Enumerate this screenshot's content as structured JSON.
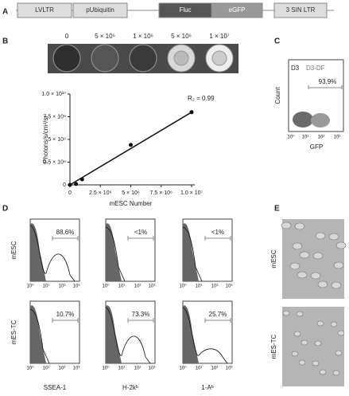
{
  "panel_labels": [
    "A",
    "B",
    "C",
    "D",
    "E"
  ],
  "construct": [
    "LVLTR",
    "pUbiquitin",
    "Fluc",
    "eGFP",
    "3 SIN LTR"
  ],
  "well_labels": [
    "0",
    "5 × 10⁵",
    "1 × 10⁶",
    "5 × 10⁶",
    "1 × 10⁷"
  ],
  "chart_data": {
    "type": "scatter",
    "x": [
      0,
      500000,
      1000000,
      5000000,
      10000000
    ],
    "values": [
      0,
      100000000,
      600000000,
      4400000000,
      8000000000
    ],
    "color": "#111111",
    "xlim": [
      0,
      10000000
    ],
    "ylim": [
      0,
      10000000000
    ],
    "xticks": [
      0,
      {
        "value": 2500000,
        "label": "2.5 × 10⁶"
      },
      {
        "value": 5000000,
        "label": "5 × 10⁶"
      },
      {
        "value": 7500000,
        "label": "7.5 × 10⁶"
      },
      {
        "value": 10000000,
        "label": "1.0 × 10⁷"
      }
    ],
    "yticks": [
      0,
      {
        "value": 2500000000,
        "label": "2.5 × 10⁹"
      },
      {
        "value": 5000000000,
        "label": "5 × 10⁹"
      },
      {
        "value": 7500000000,
        "label": "7.5 × 10⁹"
      },
      {
        "value": 10000000000,
        "label": "1.0 × 10¹⁰"
      }
    ],
    "xlabel": "mESC Number",
    "ylabel": "Photons/s/cm²/sr",
    "annotation": "R₂ = 0.99"
  },
  "flow": {
    "labels": [
      "D3",
      "D3-DF"
    ],
    "percent": "93.9%",
    "ylabel": "Count",
    "xlabel": "GFP",
    "xticks": [
      "10⁰",
      "10¹",
      "10²",
      "10³"
    ]
  },
  "histograms": {
    "rows": [
      "mESC",
      "mES-TC"
    ],
    "columns": [
      "SSEA-1",
      "H-2kᵇ",
      "1-Aᵇ"
    ],
    "percent": [
      [
        "88.6%",
        "<1%",
        "<1%"
      ],
      [
        "10.7%",
        "73.3%",
        "25.7%"
      ]
    ],
    "xticks": [
      "10⁰",
      "10¹",
      "10²",
      "10³"
    ]
  },
  "micrographs": {
    "rows": [
      "mESC",
      "mES-TC"
    ]
  }
}
